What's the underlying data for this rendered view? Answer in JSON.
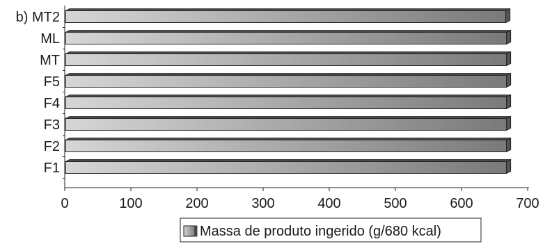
{
  "chart_data": {
    "type": "bar",
    "orientation": "horizontal",
    "panel_label": "b)",
    "categories": [
      "MT2",
      "ML",
      "MT",
      "F5",
      "F4",
      "F3",
      "F2",
      "F1"
    ],
    "series": [
      {
        "name": "Massa de produto ingerido (g/680 kcal)",
        "values": [
          667,
          668,
          668,
          668,
          668,
          668,
          668,
          668
        ]
      }
    ],
    "x_ticks": [
      "0",
      "100",
      "200",
      "300",
      "400",
      "500",
      "600",
      "700"
    ],
    "xlim": [
      0,
      700
    ],
    "grid": false,
    "legend_position": "bottom-center",
    "colors": {
      "bar_light": "#d6d6d6",
      "bar_dark": "#7a7a7a",
      "bar_end": "#555555",
      "outline": "#222222"
    }
  }
}
